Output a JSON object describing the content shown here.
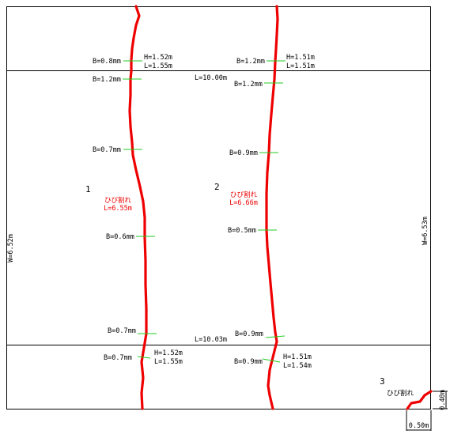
{
  "colors": {
    "crack": "#ee0000",
    "width_tick": "#22cc22",
    "line": "#000000",
    "crack_label": "#ee0000",
    "text": "#000000"
  },
  "dimensions": {
    "left_height": "W=6.52m",
    "right_height": "W=6.53m",
    "top_length": "L=10.00m",
    "bottom_length": "L=10.03m"
  },
  "cracks": [
    {
      "number": "1",
      "name": "ひび割れ",
      "length": "L=6.55m",
      "top_segment": {
        "width": "B=0.8mm",
        "height": "H=1.52m",
        "length": "L=1.55m"
      },
      "middle_widths": [
        "B=1.2mm",
        "B=0.7mm",
        "B=0.6mm",
        "B=0.7mm"
      ],
      "bottom_segment": {
        "width": "B=0.7mm",
        "height": "H=1.52m",
        "length": "L=1.55m"
      }
    },
    {
      "number": "2",
      "name": "ひび割れ",
      "length": "L=6.66m",
      "top_segment": {
        "width": "B=1.2mm",
        "height": "H=1.51m",
        "length": "L=1.51m"
      },
      "middle_widths": [
        "B=1.2mm",
        "B=0.9mm",
        "B=0.5mm",
        "B=0.9mm"
      ],
      "bottom_segment": {
        "width": "B=0.9mm",
        "height": "H=1.51m",
        "length": "L=1.54m"
      }
    },
    {
      "number": "3",
      "name": "ひび割れ",
      "dim_horizontal": "0.50m",
      "dim_vertical": "0.40m"
    }
  ]
}
